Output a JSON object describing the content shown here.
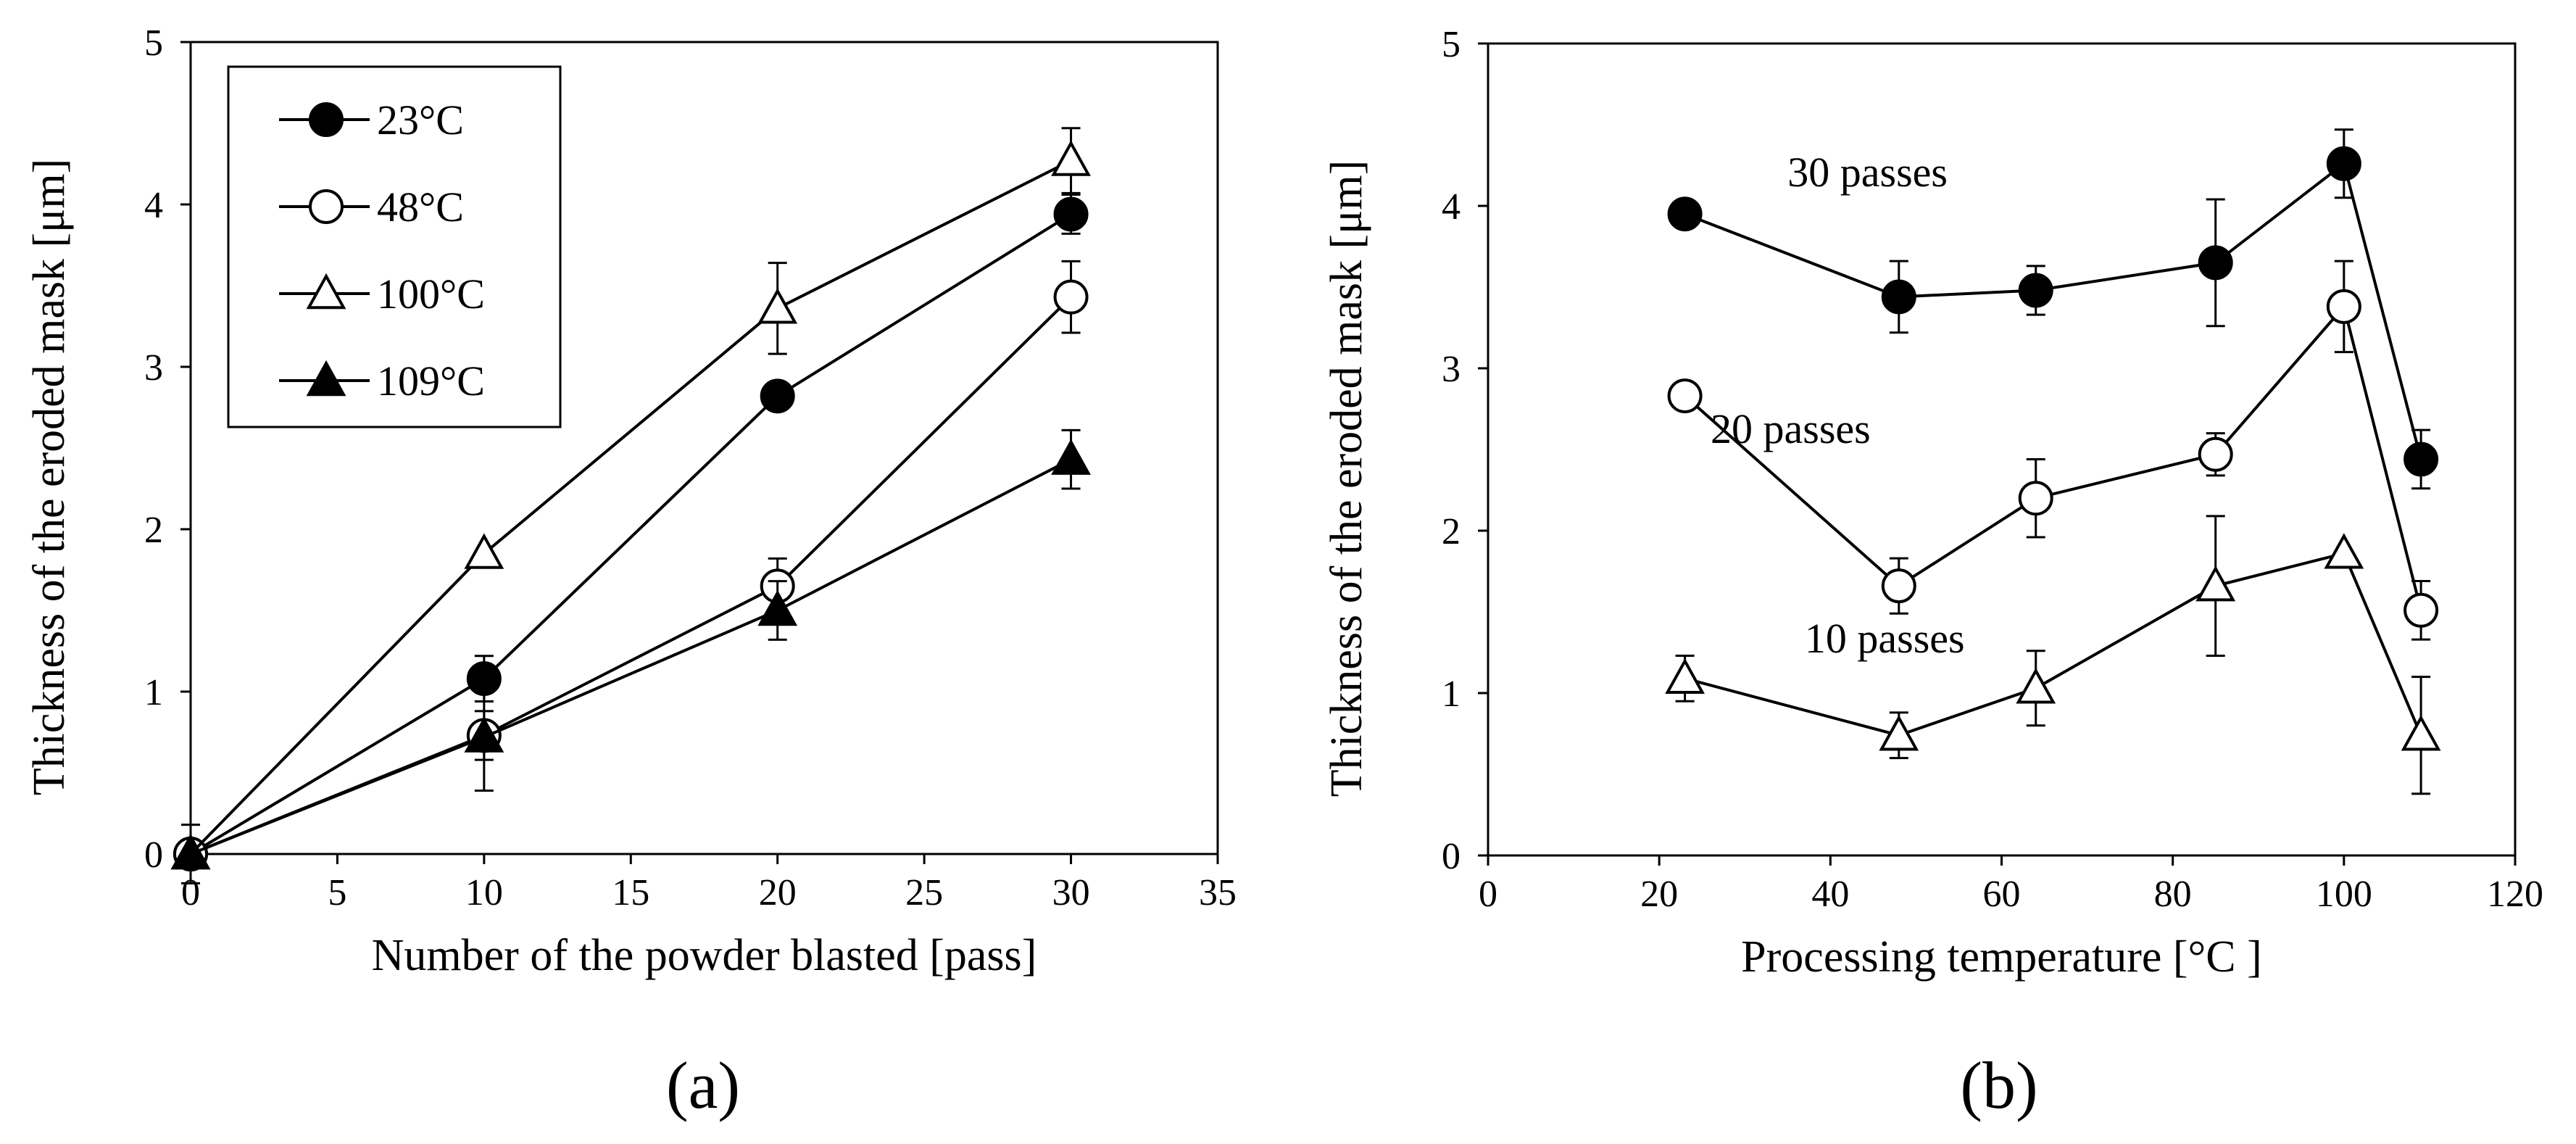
{
  "chart_data": [
    {
      "type": "scatter",
      "panel_label": "(a)",
      "title": "",
      "xlabel": "Number of the powder blasted [pass]",
      "ylabel": "Thickness of the eroded mask [μm]",
      "xlim": [
        0,
        35
      ],
      "ylim": [
        0,
        5
      ],
      "xticks": [
        0,
        5,
        10,
        15,
        20,
        25,
        30,
        35
      ],
      "yticks": [
        0,
        1,
        2,
        3,
        4,
        5
      ],
      "grid": false,
      "legend_position": "top-left",
      "series": [
        {
          "name": "23°C",
          "marker": "circle-filled",
          "x": [
            0,
            10,
            20,
            30
          ],
          "y": [
            0,
            1.08,
            2.82,
            3.94
          ],
          "err": [
            0,
            0.14,
            0,
            0.12
          ]
        },
        {
          "name": "48°C",
          "marker": "circle-open",
          "x": [
            0,
            10,
            20,
            30
          ],
          "y": [
            0,
            0.73,
            1.65,
            3.43
          ],
          "err": [
            0,
            0.15,
            0.17,
            0.22
          ]
        },
        {
          "name": "100°C",
          "marker": "triangle-open",
          "x": [
            0,
            10,
            20,
            30
          ],
          "y": [
            0,
            1.85,
            3.36,
            4.27
          ],
          "err": [
            0,
            0,
            0.28,
            0.2
          ]
        },
        {
          "name": "109°C",
          "marker": "triangle-filled",
          "x": [
            0,
            10,
            20,
            30
          ],
          "y": [
            0,
            0.72,
            1.5,
            2.43
          ],
          "err": [
            0.18,
            0.33,
            0.18,
            0.18
          ]
        }
      ]
    },
    {
      "type": "scatter",
      "panel_label": "(b)",
      "title": "",
      "xlabel": "Processing temperature [°C ]",
      "ylabel": "Thickness of the eroded mask [μm]",
      "xlim": [
        0,
        120
      ],
      "ylim": [
        0,
        5
      ],
      "xticks": [
        0,
        20,
        40,
        60,
        80,
        100,
        120
      ],
      "yticks": [
        0,
        1,
        2,
        3,
        4,
        5
      ],
      "grid": false,
      "series": [
        {
          "name": "30 passes",
          "marker": "circle-filled",
          "x": [
            23,
            48,
            64,
            85,
            100,
            109
          ],
          "y": [
            3.95,
            3.44,
            3.48,
            3.65,
            4.26,
            2.44
          ],
          "err": [
            0,
            0.22,
            0.15,
            0.39,
            0.21,
            0.18
          ],
          "label_at": [
            35,
            4.12
          ]
        },
        {
          "name": "20 passes",
          "marker": "circle-open",
          "x": [
            23,
            48,
            64,
            85,
            100,
            109
          ],
          "y": [
            2.83,
            1.66,
            2.2,
            2.47,
            3.38,
            1.51
          ],
          "err": [
            0,
            0.17,
            0.24,
            0.13,
            0.28,
            0.18
          ],
          "label_at": [
            26,
            2.54
          ]
        },
        {
          "name": "10 passes",
          "marker": "triangle-open",
          "x": [
            23,
            48,
            64,
            85,
            100,
            109
          ],
          "y": [
            1.09,
            0.74,
            1.03,
            1.66,
            1.86,
            0.74
          ],
          "err": [
            0.14,
            0.14,
            0.23,
            0.43,
            0,
            0.36
          ],
          "label_at": [
            37,
            1.25
          ]
        }
      ]
    }
  ]
}
